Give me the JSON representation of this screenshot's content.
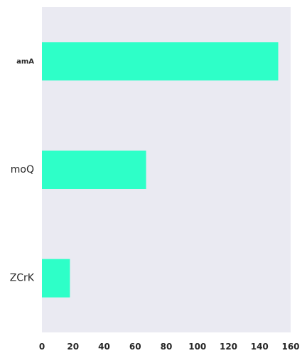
{
  "chart_data": {
    "type": "bar",
    "orientation": "horizontal",
    "categories": [
      "amA",
      "moQ",
      "ZCrK"
    ],
    "values": [
      152,
      67,
      18
    ],
    "xlim": [
      0,
      160
    ],
    "xticks": [
      0,
      20,
      40,
      60,
      80,
      100,
      120,
      140,
      160
    ],
    "title": "",
    "xlabel": "",
    "ylabel": "",
    "grid": false,
    "colors": {
      "bar": "#2effc8",
      "plot_background": "#eaeaf2"
    }
  }
}
